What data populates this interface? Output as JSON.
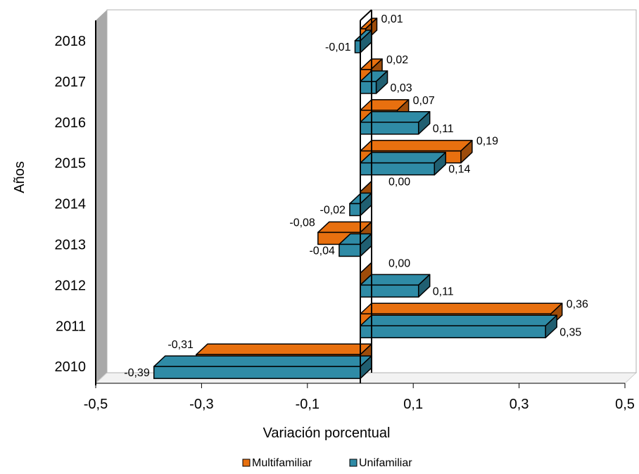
{
  "chart_data": {
    "type": "bar",
    "orientation": "horizontal",
    "categories": [
      "2010",
      "2011",
      "2012",
      "2013",
      "2014",
      "2015",
      "2016",
      "2017",
      "2018"
    ],
    "series": [
      {
        "name": "Multifamiliar",
        "color": "#E8700F",
        "values": [
          -0.31,
          0.36,
          0.0,
          -0.08,
          0.0,
          0.19,
          0.07,
          0.02,
          0.01
        ],
        "labels": [
          "-0,31",
          "0,36",
          "0,00",
          "-0,08",
          "0,00",
          "0,19",
          "0,07",
          "0,02",
          "0,01"
        ]
      },
      {
        "name": "Unifamiliar",
        "color": "#2F8BA6",
        "values": [
          -0.39,
          0.35,
          0.11,
          -0.04,
          -0.02,
          0.14,
          0.11,
          0.03,
          -0.01
        ],
        "labels": [
          "-0,39",
          "0,35",
          "0,11",
          "-0,04",
          "-0,02",
          "0,14",
          "0,11",
          "0,03",
          "-0,01"
        ]
      }
    ],
    "xlabel": "Variación porcentual",
    "ylabel": "Años",
    "xlim": [
      -0.5,
      0.5
    ],
    "x_ticks": [
      -0.5,
      -0.3,
      -0.1,
      0.1,
      0.3,
      0.5
    ],
    "x_tick_labels": [
      "-0,5",
      "-0,3",
      "-0,1",
      "0,1",
      "0,3",
      "0,5"
    ],
    "grid": false,
    "legend_position": "bottom",
    "style": "3d"
  }
}
